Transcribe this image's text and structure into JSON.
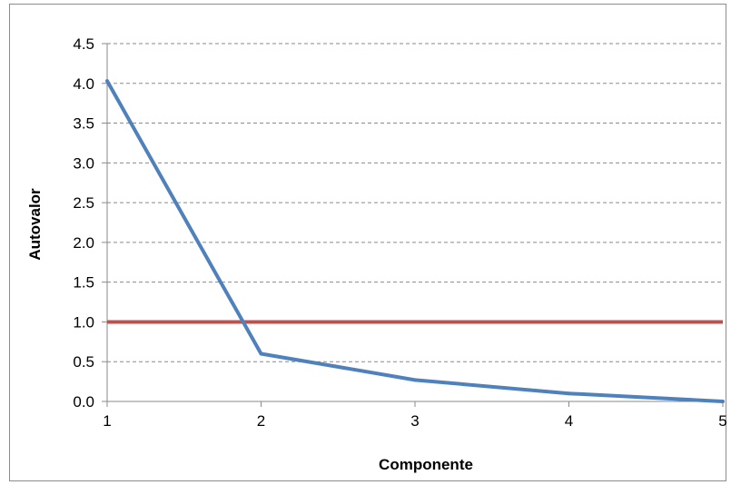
{
  "chart_data": {
    "type": "line",
    "title": "",
    "xlabel": "Componente",
    "ylabel": "Autovalor",
    "xlim": [
      1,
      5
    ],
    "ylim": [
      0,
      4.5
    ],
    "x_ticks": [
      "1",
      "2",
      "3",
      "4",
      "5"
    ],
    "y_ticks": [
      "0.0",
      "0.5",
      "1.0",
      "1.5",
      "2.0",
      "2.5",
      "3.0",
      "3.5",
      "4.0",
      "4.5"
    ],
    "grid": "horizontal-dashed",
    "legend": "none",
    "series": [
      {
        "x": [
          1,
          2,
          3,
          4,
          5
        ],
        "values": [
          4.03,
          0.6,
          0.27,
          0.1,
          0.0
        ],
        "color": "#4f81bd"
      }
    ],
    "reference_lines": [
      {
        "y": 1.0,
        "color": "#c0504d"
      }
    ]
  }
}
